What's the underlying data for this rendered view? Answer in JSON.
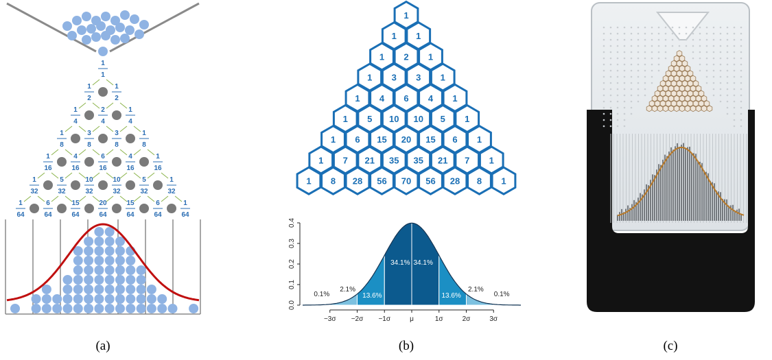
{
  "figure_a": {
    "caption": "(a)",
    "fractions": [
      [
        [
          1,
          1
        ]
      ],
      [
        [
          1,
          2
        ],
        [
          1,
          2
        ]
      ],
      [
        [
          1,
          4
        ],
        [
          2,
          4
        ],
        [
          1,
          4
        ]
      ],
      [
        [
          1,
          8
        ],
        [
          3,
          8
        ],
        [
          3,
          8
        ],
        [
          1,
          8
        ]
      ],
      [
        [
          1,
          16
        ],
        [
          4,
          16
        ],
        [
          6,
          16
        ],
        [
          4,
          16
        ],
        [
          1,
          16
        ]
      ],
      [
        [
          1,
          32
        ],
        [
          5,
          32
        ],
        [
          10,
          32
        ],
        [
          10,
          32
        ],
        [
          5,
          32
        ],
        [
          1,
          32
        ]
      ],
      [
        [
          1,
          64
        ],
        [
          6,
          64
        ],
        [
          15,
          64
        ],
        [
          20,
          64
        ],
        [
          15,
          64
        ],
        [
          6,
          64
        ],
        [
          1,
          64
        ]
      ]
    ]
  },
  "figure_b": {
    "caption": "(b)",
    "pascal": [
      [
        1
      ],
      [
        1,
        1
      ],
      [
        1,
        2,
        1
      ],
      [
        1,
        3,
        3,
        1
      ],
      [
        1,
        4,
        6,
        4,
        1
      ],
      [
        1,
        5,
        10,
        10,
        5,
        1
      ],
      [
        1,
        6,
        15,
        20,
        15,
        6,
        1
      ],
      [
        1,
        7,
        21,
        35,
        35,
        21,
        7,
        1
      ],
      [
        1,
        8,
        28,
        56,
        70,
        56,
        28,
        8,
        1
      ]
    ]
  },
  "chart_data": {
    "type": "normal-regions",
    "xlim": [
      -4,
      4
    ],
    "ylim": [
      0,
      0.4
    ],
    "yticks": [
      {
        "value": 0,
        "label": "0.0"
      },
      0.1,
      0.2,
      0.3,
      0.4
    ],
    "xticks": [
      {
        "value": -3,
        "label": "−3σ"
      },
      {
        "value": -2,
        "label": "−2σ"
      },
      {
        "value": -1,
        "label": "−1σ"
      },
      {
        "value": 0,
        "label": "μ"
      },
      {
        "value": 1,
        "label": "1σ"
      },
      {
        "value": 2,
        "label": "2σ"
      },
      {
        "value": 3,
        "label": "3σ"
      }
    ],
    "values": [
      0.1,
      2.1,
      13.6,
      34.1,
      34.1,
      13.6,
      2.1,
      0.1
    ],
    "value_labels": [
      "0.1%",
      "2.1%",
      "13.6%",
      "34.1%",
      "34.1%",
      "13.6%",
      "2.1%",
      "0.1%"
    ],
    "colors": [
      "#cfe6f2",
      "#7cc1e0",
      "#1b8fc4",
      "#0c5a8e",
      "#0c5a8e",
      "#1b8fc4",
      "#7cc1e0",
      "#cfe6f2"
    ]
  },
  "figure_c": {
    "caption": "(c)"
  }
}
